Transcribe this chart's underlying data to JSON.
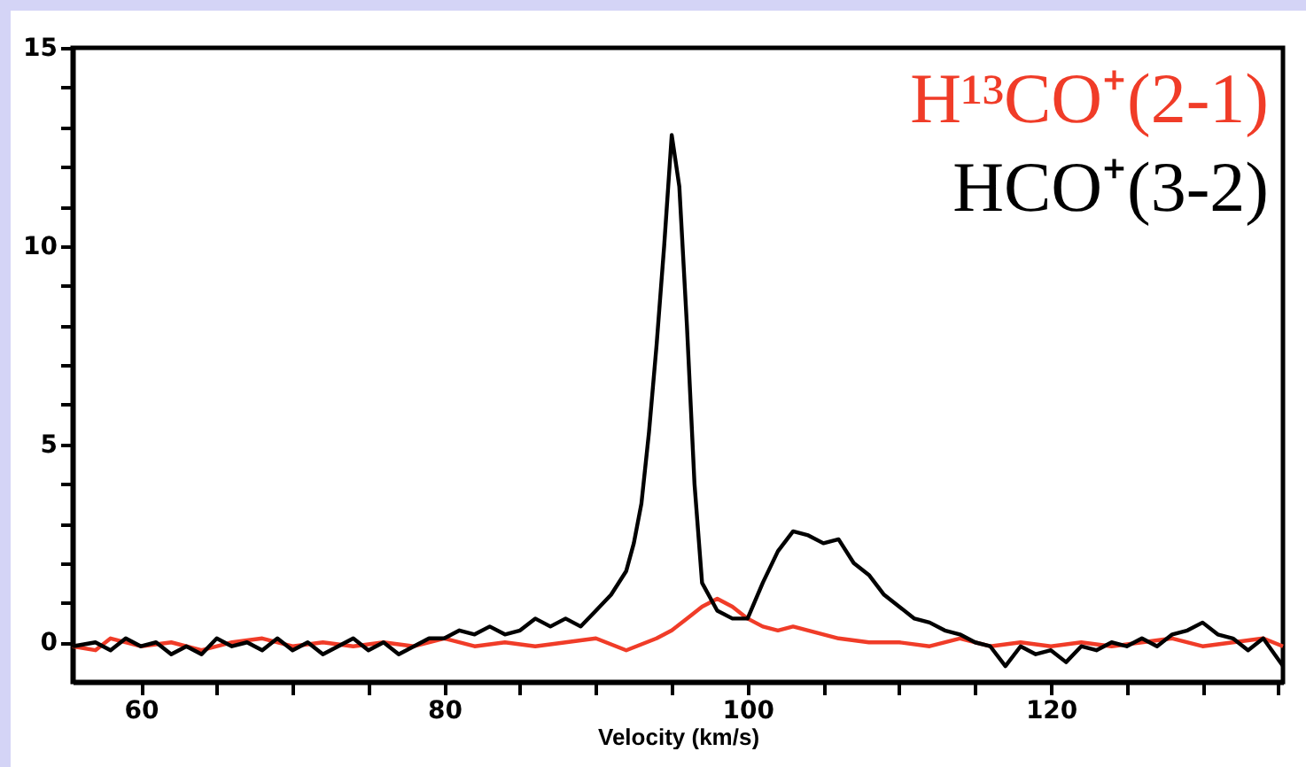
{
  "chart_data": {
    "type": "line",
    "xlabel": "Velocity (km/s)",
    "legend": "top right",
    "line_style": "solid",
    "grid": false,
    "xlim": [
      55.5,
      135.3
    ],
    "ylim": [
      -1,
      15
    ],
    "xticks": [
      60,
      {
        "value": 65,
        "label": null
      },
      {
        "value": 70,
        "label": null
      },
      {
        "value": 75,
        "label": null
      },
      80,
      {
        "value": 85,
        "label": null
      },
      {
        "value": 90,
        "label": null
      },
      {
        "value": 95,
        "label": null
      },
      100,
      {
        "value": 105,
        "label": null
      },
      {
        "value": 110,
        "label": null
      },
      {
        "value": 115,
        "label": null
      },
      120,
      {
        "value": 125,
        "label": null
      },
      {
        "value": 130,
        "label": null
      },
      {
        "value": 135,
        "label": null
      }
    ],
    "yticks": [
      0,
      {
        "value": 1,
        "label": null
      },
      {
        "value": 2,
        "label": null
      },
      {
        "value": 3,
        "label": null
      },
      {
        "value": 4,
        "label": null
      },
      5,
      {
        "value": 6,
        "label": null
      },
      {
        "value": 7,
        "label": null
      },
      {
        "value": 8,
        "label": null
      },
      {
        "value": 9,
        "label": null
      },
      10,
      {
        "value": 11,
        "label": null
      },
      {
        "value": 12,
        "label": null
      },
      {
        "value": 13,
        "label": null
      },
      {
        "value": 14,
        "label": null
      },
      15
    ],
    "series": [
      {
        "name": "H¹³CO⁺(2-1)",
        "color": "#f03c28",
        "x": [
          55.5,
          57,
          58,
          60,
          62,
          64,
          66,
          68,
          70,
          72,
          74,
          76,
          78,
          80,
          82,
          84,
          86,
          88,
          90,
          92,
          94,
          95,
          96,
          97,
          98,
          99,
          100,
          101,
          102,
          103,
          104,
          106,
          108,
          110,
          112,
          114,
          116,
          118,
          120,
          122,
          124,
          126,
          128,
          130,
          132,
          134,
          135.3
        ],
        "values": [
          -0.1,
          -0.2,
          0.1,
          -0.1,
          0.0,
          -0.2,
          0.0,
          0.1,
          -0.1,
          0.0,
          -0.1,
          0.0,
          -0.1,
          0.1,
          -0.1,
          0.0,
          -0.1,
          0.0,
          0.1,
          -0.2,
          0.1,
          0.3,
          0.6,
          0.9,
          1.1,
          0.9,
          0.6,
          0.4,
          0.3,
          0.4,
          0.3,
          0.1,
          0.0,
          0.0,
          -0.1,
          0.1,
          -0.1,
          0.0,
          -0.1,
          0.0,
          -0.1,
          0.0,
          0.1,
          -0.1,
          0.0,
          0.1,
          -0.1
        ]
      },
      {
        "name": "HCO⁺(3-2)",
        "color": "#000000",
        "x": [
          55.5,
          57,
          58,
          59,
          60,
          61,
          62,
          63,
          64,
          65,
          66,
          67,
          68,
          69,
          70,
          71,
          72,
          73,
          74,
          75,
          76,
          77,
          78,
          79,
          80,
          81,
          82,
          83,
          84,
          85,
          86,
          87,
          88,
          89,
          90,
          91,
          92,
          92.5,
          93,
          93.5,
          94,
          94.5,
          95,
          95.5,
          96,
          96.5,
          97,
          98,
          99,
          100,
          101,
          102,
          103,
          104,
          105,
          106,
          107,
          108,
          109,
          110,
          111,
          112,
          113,
          114,
          115,
          116,
          117,
          118,
          119,
          120,
          121,
          122,
          123,
          124,
          125,
          126,
          127,
          128,
          129,
          130,
          131,
          132,
          133,
          134,
          135.3
        ],
        "values": [
          -0.1,
          0.0,
          -0.2,
          0.1,
          -0.1,
          0.0,
          -0.3,
          -0.1,
          -0.3,
          0.1,
          -0.1,
          0.0,
          -0.2,
          0.1,
          -0.2,
          0.0,
          -0.3,
          -0.1,
          0.1,
          -0.2,
          0.0,
          -0.3,
          -0.1,
          0.1,
          0.1,
          0.3,
          0.2,
          0.4,
          0.2,
          0.3,
          0.6,
          0.4,
          0.6,
          0.4,
          0.8,
          1.2,
          1.8,
          2.5,
          3.5,
          5.3,
          7.5,
          10.0,
          12.8,
          11.5,
          8.0,
          4.0,
          1.5,
          0.8,
          0.6,
          0.6,
          1.5,
          2.3,
          2.8,
          2.7,
          2.5,
          2.6,
          2.0,
          1.7,
          1.2,
          0.9,
          0.6,
          0.5,
          0.3,
          0.2,
          0.0,
          -0.1,
          -0.6,
          -0.1,
          -0.3,
          -0.2,
          -0.5,
          -0.1,
          -0.2,
          0.0,
          -0.1,
          0.1,
          -0.1,
          0.2,
          0.3,
          0.5,
          0.2,
          0.1,
          -0.2,
          0.1,
          -0.6
        ]
      }
    ]
  }
}
